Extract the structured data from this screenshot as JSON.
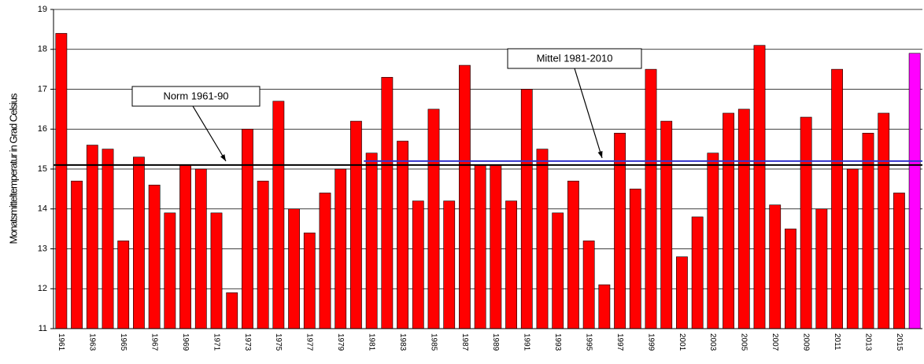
{
  "chart_data": {
    "type": "bar",
    "y_label": "Monatsmitteltemperatur in Grad Celsius",
    "categories": [
      "1961",
      null,
      "1963",
      null,
      "1965",
      null,
      "1967",
      null,
      "1969",
      null,
      "1971",
      null,
      "1973",
      null,
      "1975",
      null,
      "1977",
      null,
      "1979",
      null,
      "1981",
      null,
      "1983",
      null,
      "1985",
      null,
      "1987",
      null,
      "1989",
      null,
      "1991",
      null,
      "1993",
      null,
      "1995",
      null,
      "1997",
      null,
      "1999",
      null,
      "2001",
      null,
      "2003",
      null,
      "2005",
      null,
      "2007",
      null,
      "2009",
      null,
      "2011",
      null,
      "2013",
      null,
      "2015",
      null
    ],
    "values": [
      18.4,
      14.7,
      15.6,
      15.5,
      13.2,
      15.3,
      14.6,
      13.9,
      15.1,
      15.0,
      13.9,
      11.9,
      16.0,
      14.7,
      16.7,
      14.0,
      13.4,
      14.4,
      15.0,
      16.2,
      15.4,
      17.3,
      15.7,
      14.2,
      16.5,
      14.2,
      17.6,
      15.1,
      15.1,
      14.2,
      17.0,
      15.5,
      13.9,
      14.7,
      13.2,
      12.1,
      15.9,
      14.5,
      17.5,
      16.2,
      12.8,
      13.8,
      15.4,
      16.4,
      16.5,
      18.1,
      14.1,
      13.5,
      16.3,
      14.0,
      17.5,
      15.0,
      15.9,
      16.4,
      14.4,
      17.9
    ],
    "color": "#ff0000",
    "last_color": "#ff00ff",
    "ylim": [
      11,
      19
    ],
    "yticks": [
      11,
      12,
      13,
      14,
      15,
      16,
      17,
      18,
      19
    ],
    "grid": true,
    "reference_lines": [
      {
        "label": "Norm 1961-90",
        "value": 15.1,
        "color": "#000000",
        "start": "1961"
      },
      {
        "label": "Mittel 1981-2010",
        "value": 15.2,
        "color": "#3333cc",
        "start": "1981"
      }
    ]
  }
}
